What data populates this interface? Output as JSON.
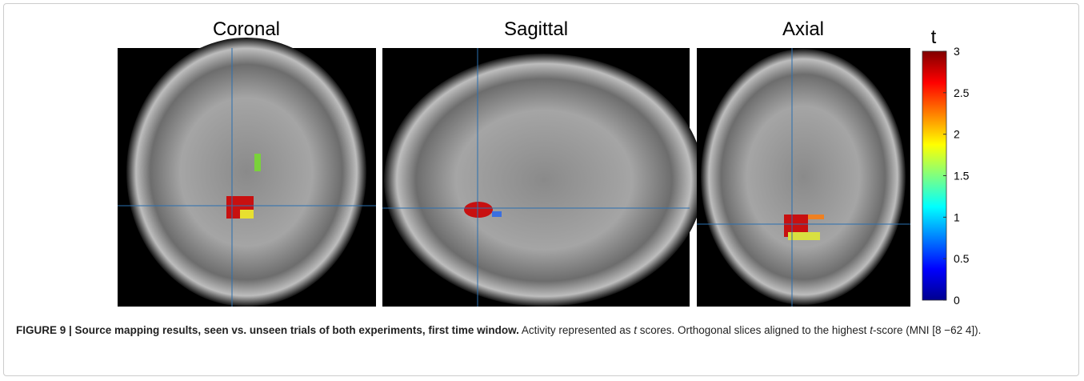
{
  "panels": [
    {
      "title": "Coronal"
    },
    {
      "title": "Sagittal"
    },
    {
      "title": "Axial"
    }
  ],
  "colorbar": {
    "label": "t",
    "lim": [
      0,
      3
    ],
    "ticks": [
      0,
      0.5,
      1,
      1.5,
      2,
      2.5,
      3
    ]
  },
  "caption": {
    "bold": "FIGURE 9 | Source mapping results, seen vs. unseen trials of both experiments, first time window.",
    "parts": [
      " Activity represented as ",
      "t",
      " scores. Orthogonal slices aligned to the highest ",
      "t",
      "-score (MNI [8 −62 4])."
    ]
  }
}
